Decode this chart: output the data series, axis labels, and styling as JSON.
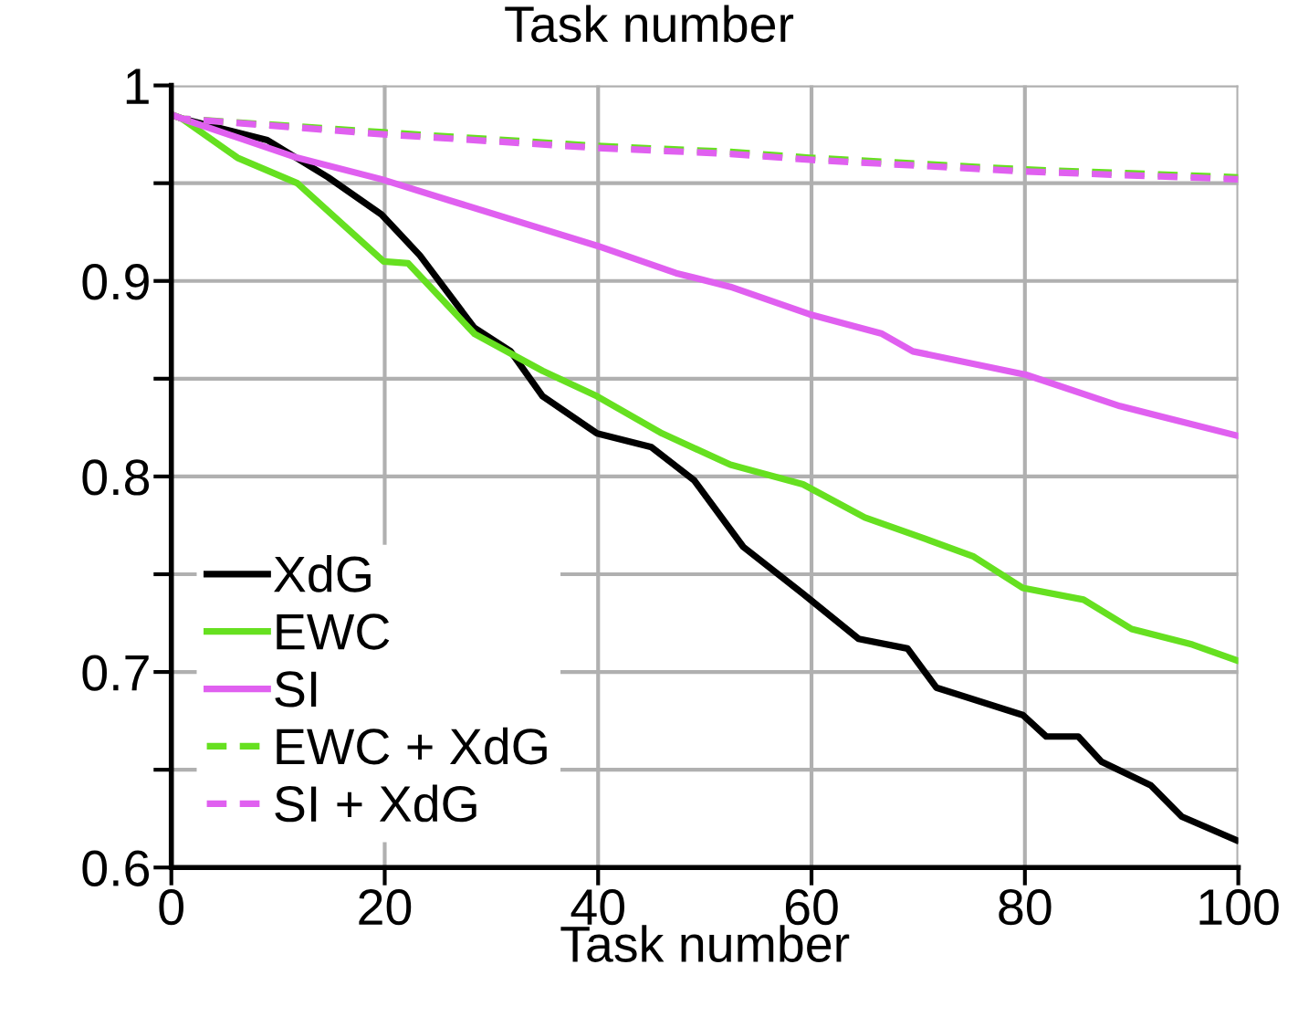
{
  "chart_data": {
    "type": "line",
    "xlabel": "Task number",
    "annotations": [
      "Task number"
    ],
    "xlim": [
      0,
      100
    ],
    "xticks": [
      0,
      20,
      40,
      60,
      80,
      100
    ],
    "ylim": [
      0.6,
      1
    ],
    "yticks": [
      {
        "value": 0.6,
        "label": "0.6"
      },
      {
        "value": 0.65,
        "label": null
      },
      {
        "value": 0.7,
        "label": "0.7"
      },
      {
        "value": 0.75,
        "label": null
      },
      {
        "value": 0.8,
        "label": "0.8"
      },
      {
        "value": 0.85,
        "label": null
      },
      {
        "value": 0.9,
        "label": "0.9"
      },
      {
        "value": 0.95,
        "label": null
      },
      {
        "value": 1,
        "label": "1"
      }
    ],
    "grid": true,
    "legend": "bottom left",
    "marker": "none",
    "series": [
      {
        "name": "XdG",
        "color": "#000000",
        "line_style": "solid",
        "x": [
          0,
          1,
          9,
          14.7,
          19.7,
          23.3,
          28.4,
          31.8,
          34.8,
          39.9,
          45,
          49,
          53.6,
          59.2,
          64.4,
          69,
          71.7,
          79.8,
          82,
          85,
          87.2,
          91.8,
          94.7,
          99.8
        ],
        "values": [
          0.985,
          0.983,
          0.972,
          0.953,
          0.934,
          0.913,
          0.876,
          0.864,
          0.841,
          0.822,
          0.815,
          0.798,
          0.764,
          0.74,
          0.717,
          0.712,
          0.692,
          0.678,
          0.667,
          0.667,
          0.654,
          0.642,
          0.626,
          0.614
        ]
      },
      {
        "name": "EWC",
        "color": "#66e020",
        "line_style": "solid",
        "x": [
          0,
          1,
          6.2,
          11.8,
          19.9,
          22.2,
          28.4,
          34.8,
          39.9,
          46,
          52.4,
          59.2,
          65,
          70.7,
          75.2,
          79.8,
          85.5,
          90,
          95.7,
          99.8
        ],
        "values": [
          0.985,
          0.983,
          0.963,
          0.95,
          0.91,
          0.909,
          0.873,
          0.854,
          0.841,
          0.822,
          0.806,
          0.796,
          0.779,
          0.768,
          0.759,
          0.743,
          0.737,
          0.722,
          0.714,
          0.706
        ]
      },
      {
        "name": "SI",
        "color": "#e060f0",
        "line_style": "solid",
        "x": [
          0,
          1,
          11.8,
          19.7,
          26.2,
          39.9,
          47.3,
          52.4,
          59.8,
          66.6,
          69.5,
          80.1,
          88.9,
          99.8
        ],
        "values": [
          0.985,
          0.983,
          0.963,
          0.952,
          0.941,
          0.918,
          0.904,
          0.897,
          0.883,
          0.873,
          0.864,
          0.852,
          0.836,
          0.821
        ]
      },
      {
        "name": "EWC + XdG",
        "color": "#66e020",
        "line_style": "dashed",
        "x": [
          0,
          1,
          19.9,
          40,
          52.4,
          59.8,
          80,
          100
        ],
        "values": [
          0.985,
          0.983,
          0.976,
          0.969,
          0.966,
          0.963,
          0.957,
          0.953
        ]
      },
      {
        "name": "SI + XdG",
        "color": "#e060f0",
        "line_style": "dashed",
        "x": [
          0,
          1,
          19.9,
          40,
          52.4,
          59.8,
          80,
          100
        ],
        "values": [
          0.985,
          0.983,
          0.975,
          0.968,
          0.965,
          0.962,
          0.956,
          0.952
        ]
      }
    ]
  }
}
